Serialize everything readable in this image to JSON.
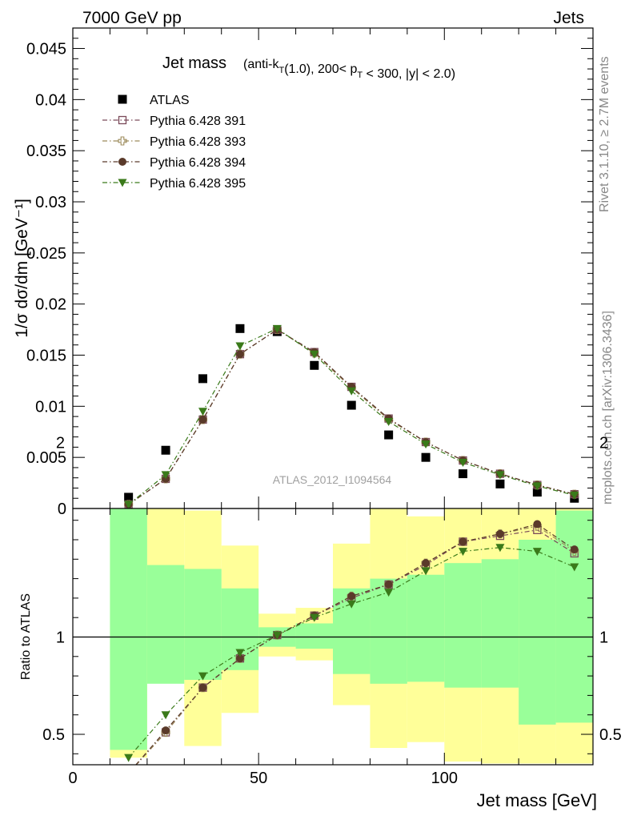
{
  "header": {
    "left": "7000 GeV pp",
    "right": "Jets"
  },
  "side_labels": {
    "rivet": "Rivet 3.1.10, ≥ 2.7M events",
    "mcplots": "mcplots.cern.ch [arXiv:1306.3436]"
  },
  "chart_data": [
    {
      "type": "scatter",
      "title": "Jet mass",
      "subtitle": "(anti-k_T(1.0), 200< p_T < 300, |y| < 2.0)",
      "ylabel": "1/σ dσ/dm [GeV⁻¹]",
      "xlabel": "Jet mass [GeV]",
      "watermark": "ATLAS_2012_I1094564",
      "xlim": [
        0,
        140
      ],
      "ylim": [
        0,
        0.047
      ],
      "yticks": [
        "0",
        "0.005",
        "0.01",
        "0.015",
        "0.02",
        "0.025",
        "0.03",
        "0.035",
        "0.04",
        "0.045"
      ],
      "legend_position": "top-left",
      "x": [
        15,
        25,
        35,
        45,
        55,
        65,
        75,
        85,
        95,
        105,
        115,
        125,
        135
      ],
      "series": [
        {
          "name": "ATLAS",
          "color": "#000000",
          "marker": "square",
          "values": [
            0.0011,
            0.0057,
            0.0127,
            0.0176,
            0.0173,
            0.014,
            0.0101,
            0.0072,
            0.005,
            0.0034,
            0.0024,
            0.0016,
            0.001
          ]
        },
        {
          "name": "Pythia 6.428 391",
          "color": "#7b4a5a",
          "marker": "open-square",
          "line": "dash-dot",
          "values": [
            0.0004,
            0.0029,
            0.0087,
            0.0151,
            0.0175,
            0.0153,
            0.0119,
            0.0088,
            0.0065,
            0.0047,
            0.0034,
            0.0023,
            0.0014
          ]
        },
        {
          "name": "Pythia 6.428 393",
          "color": "#9c8a5a",
          "marker": "open-cross",
          "line": "dash-dot",
          "values": [
            0.0004,
            0.0029,
            0.0087,
            0.0151,
            0.0175,
            0.0152,
            0.0118,
            0.0087,
            0.0065,
            0.0047,
            0.0034,
            0.0023,
            0.0014
          ]
        },
        {
          "name": "Pythia 6.428 394",
          "color": "#5a3a2a",
          "marker": "circle",
          "line": "dash-dot",
          "values": [
            0.0004,
            0.0029,
            0.0087,
            0.0151,
            0.0175,
            0.0153,
            0.0119,
            0.0088,
            0.0065,
            0.0047,
            0.0034,
            0.0023,
            0.0014
          ]
        },
        {
          "name": "Pythia 6.428 395",
          "color": "#3a7a1a",
          "marker": "triangle-down",
          "line": "dash-dot",
          "values": [
            0.0004,
            0.0033,
            0.0095,
            0.0159,
            0.0176,
            0.0151,
            0.0115,
            0.0085,
            0.0063,
            0.0045,
            0.0033,
            0.0022,
            0.0013
          ]
        }
      ]
    },
    {
      "type": "scatter",
      "ylabel": "Ratio to ATLAS",
      "xlabel": "Jet mass [GeV]",
      "xlim": [
        0,
        140
      ],
      "ylim": [
        0.35,
        2.25
      ],
      "xticks": [
        "0",
        "50",
        "100"
      ],
      "yticks": [
        "0.5",
        "1",
        "2"
      ],
      "reference_line": 1,
      "bins": [
        [
          10,
          20
        ],
        [
          20,
          30
        ],
        [
          30,
          40
        ],
        [
          40,
          50
        ],
        [
          50,
          60
        ],
        [
          60,
          70
        ],
        [
          70,
          80
        ],
        [
          80,
          90
        ],
        [
          90,
          100
        ],
        [
          100,
          110
        ],
        [
          110,
          120
        ],
        [
          120,
          130
        ],
        [
          130,
          140
        ]
      ],
      "band_stat_color": "#99ff99",
      "band_total_color": "#ffff99",
      "band_stat_lo": [
        0.42,
        0.76,
        0.78,
        0.83,
        0.95,
        0.94,
        0.81,
        0.76,
        0.77,
        0.74,
        0.74,
        0.55,
        0.56
      ],
      "band_stat_hi": [
        1.7,
        1.37,
        1.35,
        1.25,
        1.05,
        1.07,
        1.25,
        1.3,
        1.32,
        1.38,
        1.4,
        1.5,
        1.65
      ],
      "band_total_lo": [
        0.38,
        0.78,
        0.44,
        0.61,
        0.9,
        0.88,
        0.65,
        0.43,
        0.46,
        0.36,
        0.35,
        0.35,
        0.35
      ],
      "band_total_hi": [
        2.18,
        1.67,
        1.65,
        1.47,
        1.12,
        1.15,
        1.48,
        1.66,
        1.62,
        1.7,
        1.76,
        2.0,
        2.08
      ],
      "x": [
        15,
        25,
        35,
        45,
        55,
        65,
        75,
        85,
        95,
        105,
        115,
        125,
        135
      ],
      "series": [
        {
          "name": "Pythia 6.428 391",
          "color": "#7b4a5a",
          "marker": "open-square",
          "values": [
            0.3,
            0.51,
            0.74,
            0.89,
            1.01,
            1.11,
            1.2,
            1.27,
            1.37,
            1.49,
            1.52,
            1.55,
            1.43
          ]
        },
        {
          "name": "Pythia 6.428 393",
          "color": "#9c8a5a",
          "marker": "open-cross",
          "values": [
            0.3,
            0.51,
            0.74,
            0.89,
            1.01,
            1.11,
            1.21,
            1.27,
            1.38,
            1.49,
            1.53,
            1.57,
            1.44
          ]
        },
        {
          "name": "Pythia 6.428 394",
          "color": "#5a3a2a",
          "marker": "circle",
          "values": [
            0.3,
            0.52,
            0.74,
            0.89,
            1.01,
            1.11,
            1.21,
            1.27,
            1.38,
            1.49,
            1.53,
            1.58,
            1.45
          ]
        },
        {
          "name": "Pythia 6.428 395",
          "color": "#3a7a1a",
          "marker": "triangle-down",
          "values": [
            0.38,
            0.6,
            0.8,
            0.92,
            1.01,
            1.1,
            1.17,
            1.23,
            1.34,
            1.44,
            1.46,
            1.44,
            1.36
          ]
        }
      ]
    }
  ]
}
